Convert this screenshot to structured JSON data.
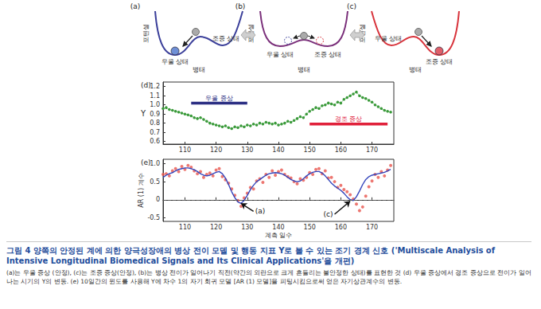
{
  "diagrams": [
    {
      "label": "(a)",
      "y_label": "포텐셜",
      "x_label": "병태",
      "states": [
        "우울 상태",
        "조증 상태"
      ],
      "color": "#3b3f9a"
    },
    {
      "label": "(b)",
      "y_label": "포텐셜",
      "x_label": "병태",
      "states": [
        "우울 상태",
        "조증 상태"
      ],
      "color": "#7a2f7a"
    },
    {
      "label": "(c)",
      "y_label": "포텐셜",
      "x_label": "병태",
      "states": [
        "우울 상태",
        "조증 상태"
      ],
      "color": "#d8343c"
    }
  ],
  "chart_data": [
    {
      "type": "line",
      "title": "(d)",
      "y_label": "Υ",
      "x": [
        103,
        104,
        105,
        106,
        107,
        108,
        109,
        110,
        111,
        112,
        113,
        114,
        115,
        116,
        117,
        118,
        119,
        120,
        121,
        122,
        123,
        124,
        125,
        126,
        127,
        128,
        129,
        130,
        131,
        132,
        133,
        134,
        135,
        136,
        137,
        138,
        139,
        140,
        141,
        142,
        143,
        144,
        145,
        146,
        147,
        148,
        149,
        150,
        151,
        152,
        153,
        154,
        155,
        156,
        157,
        158,
        159,
        160,
        161,
        162,
        163,
        164,
        165,
        166,
        167,
        168,
        169,
        170,
        171,
        172,
        173,
        174,
        175,
        176
      ],
      "series": [
        {
          "type": "line",
          "color": "#3a9a3a",
          "marker": "circle",
          "values": [
            0.96,
            0.97,
            0.95,
            0.94,
            0.93,
            0.92,
            0.91,
            0.9,
            0.89,
            0.88,
            0.86,
            0.85,
            0.86,
            0.84,
            0.82,
            0.8,
            0.79,
            0.78,
            0.77,
            0.76,
            0.77,
            0.75,
            0.74,
            0.76,
            0.75,
            0.77,
            0.76,
            0.78,
            0.77,
            0.79,
            0.78,
            0.8,
            0.79,
            0.81,
            0.8,
            0.79,
            0.8,
            0.78,
            0.79,
            0.8,
            0.82,
            0.81,
            0.83,
            0.85,
            0.87,
            0.86,
            0.9,
            0.93,
            0.95,
            0.97,
            0.96,
            0.99,
            1.0,
            1.02,
            1.01,
            1.0,
            1.03,
            1.02,
            1.06,
            1.08,
            1.1,
            1.12,
            1.14,
            1.1,
            1.08,
            1.07,
            1.05,
            1.03,
            1.0,
            0.98,
            0.96,
            0.94,
            0.93,
            0.92
          ]
        },
        {
          "name": "우울 증상",
          "type": "line",
          "color": "#2b2e83",
          "line_style": "solid",
          "x": [
            112,
            130
          ],
          "values": [
            1.02,
            1.02
          ]
        },
        {
          "name": "경조 증상",
          "type": "line",
          "color": "#e0203a",
          "line_style": "solid",
          "x": [
            150,
            175
          ],
          "values": [
            0.79,
            0.79
          ]
        }
      ],
      "xlim": [
        103,
        177
      ],
      "xticks": [
        110,
        120,
        130,
        140,
        150,
        160,
        170
      ],
      "ylim": [
        0.57,
        1.25
      ],
      "yticks": [
        0.6,
        0.7,
        0.8,
        0.9,
        {
          "value": 1,
          "label": "1.0"
        },
        1.1,
        1.2
      ],
      "grid": false
    },
    {
      "type": "line",
      "title": "(e)",
      "x_label": "계측 일수",
      "y_label": "AR (1) 계수",
      "x": [
        103,
        104,
        105,
        106,
        107,
        108,
        109,
        110,
        111,
        112,
        113,
        114,
        115,
        116,
        117,
        118,
        119,
        120,
        121,
        122,
        123,
        124,
        125,
        126,
        127,
        128,
        129,
        130,
        131,
        132,
        133,
        134,
        135,
        136,
        137,
        138,
        139,
        140,
        141,
        142,
        143,
        144,
        145,
        146,
        147,
        148,
        149,
        150,
        151,
        152,
        153,
        154,
        155,
        156,
        157,
        158,
        159,
        160,
        161,
        162,
        163,
        164,
        165,
        166,
        167,
        168,
        169,
        170,
        171,
        172,
        173,
        174,
        175,
        176
      ],
      "series": [
        {
          "type": "scatter",
          "color": "#e8554e",
          "marker": "circle",
          "values": [
            0.7,
            0.72,
            0.66,
            0.8,
            0.86,
            0.78,
            0.92,
            0.84,
            0.95,
            0.9,
            0.8,
            0.72,
            0.78,
            0.62,
            0.7,
            0.74,
            0.66,
            0.82,
            0.86,
            0.64,
            0.55,
            0.46,
            0.3,
            0.12,
            -0.02,
            -0.18,
            0.05,
            0.18,
            0.34,
            0.3,
            0.52,
            0.58,
            0.48,
            0.7,
            0.62,
            0.8,
            0.68,
            0.78,
            0.82,
            0.7,
            0.64,
            0.6,
            0.5,
            0.44,
            0.58,
            0.54,
            0.62,
            0.75,
            0.7,
            0.84,
            0.86,
            0.72,
            0.8,
            0.6,
            0.62,
            0.5,
            0.34,
            0.4,
            0.28,
            0.22,
            0.14,
            0.02,
            -0.12,
            -0.3,
            -0.2,
            0.1,
            0.36,
            0.52,
            0.7,
            0.62,
            0.78,
            0.66,
            0.82,
            0.95
          ]
        },
        {
          "type": "line",
          "color": "#3344bb",
          "line_style": "solid",
          "values": [
            0.62,
            0.68,
            0.72,
            0.75,
            0.8,
            0.84,
            0.86,
            0.88,
            0.88,
            0.86,
            0.83,
            0.78,
            0.72,
            0.68,
            0.66,
            0.68,
            0.72,
            0.76,
            0.78,
            0.72,
            0.6,
            0.42,
            0.22,
            0.06,
            -0.06,
            -0.1,
            -0.02,
            0.12,
            0.28,
            0.4,
            0.5,
            0.56,
            0.62,
            0.68,
            0.72,
            0.74,
            0.75,
            0.74,
            0.72,
            0.68,
            0.62,
            0.56,
            0.52,
            0.5,
            0.52,
            0.58,
            0.66,
            0.72,
            0.76,
            0.78,
            0.78,
            0.74,
            0.66,
            0.56,
            0.46,
            0.38,
            0.32,
            0.26,
            0.18,
            0.08,
            0,
            -0.02,
            0.08,
            0.24,
            0.42,
            0.56,
            0.64,
            0.68,
            0.7,
            0.72,
            0.74,
            0.76,
            0.8,
            0.84
          ]
        }
      ],
      "hline": 0,
      "annotations": [
        {
          "text": "(a)",
          "x": 132,
          "y": -0.32,
          "arrow_to": [
            128,
            -0.1
          ]
        },
        {
          "text": "(c)",
          "x": 158,
          "y": -0.4,
          "arrow_to": [
            163,
            -0.04
          ]
        }
      ],
      "xlim": [
        103,
        177
      ],
      "xticks": [
        110,
        120,
        130,
        140,
        150,
        160,
        170
      ],
      "ylim": [
        -0.6,
        1.12
      ],
      "yticks": [
        -0.5,
        0,
        0.5,
        {
          "value": 1,
          "label": "1.0"
        }
      ],
      "grid": false
    }
  ],
  "caption": {
    "figure": "그림 4",
    "title": "양쪽의 안정된 계에 의한 양극성장애의 병상 전이 모델 및 행동 지표 Υ로 볼 수 있는 조기 경계 신호 ('Multiscale Analysis of Intensive Longitudinal Biomedical Signals and Its Clinical Applications'을 개편)",
    "notes": "(a)는 우울 증상 (안정), (c)는 조증 증상(안정), (b)는 병상 전이가 일어나기 직전(약간의 외란으로 크게 흔들리는 불안정한 상태)를 표현한 것 (d) 우울 증상에서 경조 증상으로 전이가 일어나는 시기의 Υ의 변동. (e) 10일간의 윈도를 사용해 Υ에 차수 1의 자기 회귀 모델 [AR (1) 모델]을 피팅시킴으로써 얻은 자기상관계수의 변동."
  }
}
